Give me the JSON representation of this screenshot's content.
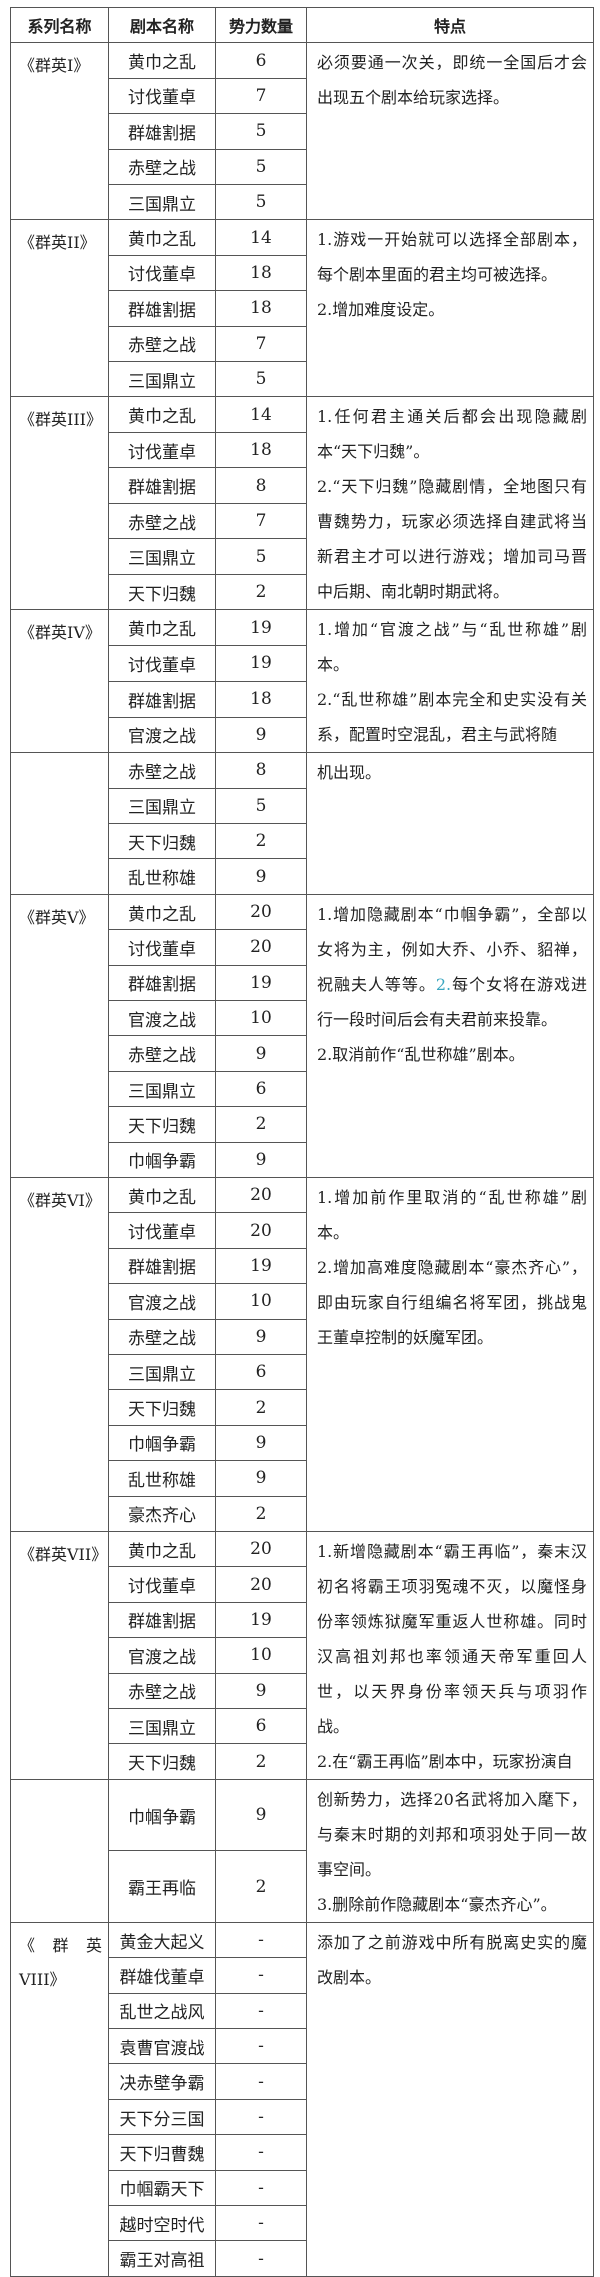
{
  "headers": [
    "系列名称",
    "剧本名称",
    "势力数量",
    "特点"
  ],
  "accent_color": "#3aa6c0",
  "groups": [
    {
      "series": "《群英I》",
      "rows": [
        [
          "黄巾之乱",
          "6"
        ],
        [
          "讨伐董卓",
          "7"
        ],
        [
          "群雄割据",
          "5"
        ],
        [
          "赤壁之战",
          "5"
        ],
        [
          "三国鼎立",
          "5"
        ]
      ],
      "features": [
        [
          {
            "text": "必须要通一次关，即统一全国后才会出现五个剧本给玩家选择。"
          }
        ]
      ]
    },
    {
      "series": "《群英II》",
      "rows": [
        [
          "黄巾之乱",
          "14"
        ],
        [
          "讨伐董卓",
          "18"
        ],
        [
          "群雄割据",
          "18"
        ],
        [
          "赤壁之战",
          "7"
        ],
        [
          "三国鼎立",
          "5"
        ]
      ],
      "features": [
        [
          {
            "text": "1.游戏一开始就可以选择全部剧本，每个剧本里面的君主均可被选择。"
          }
        ],
        [
          {
            "text": "2.增加难度设定。"
          }
        ]
      ]
    },
    {
      "series": "《群英III》",
      "rows": [
        [
          "黄巾之乱",
          "14"
        ],
        [
          "讨伐董卓",
          "18"
        ],
        [
          "群雄割据",
          "8"
        ],
        [
          "赤壁之战",
          "7"
        ],
        [
          "三国鼎立",
          "5"
        ],
        [
          "天下归魏",
          "2"
        ]
      ],
      "features": [
        [
          {
            "text": "1.任何君主通关后都会出现隐藏剧本“天下归魏”。"
          }
        ],
        [
          {
            "text": "2.“天下归魏”隐藏剧情，全地图只有曹魏势力，玩家必须选择自建武将当新君主才可以进行游戏；增加司马晋中后期、南北朝时期武将。"
          }
        ]
      ]
    },
    {
      "series": "《群英IV》",
      "rows": [
        [
          "黄巾之乱",
          "19"
        ],
        [
          "讨伐董卓",
          "19"
        ],
        [
          "群雄割据",
          "18"
        ],
        [
          "官渡之战",
          "9"
        ]
      ],
      "features": [
        [
          {
            "text": "1.增加“官渡之战”与“乱世称雄”剧本。"
          }
        ],
        [
          {
            "text": "2.“乱世称雄”剧本完全和史实没有关系，配置时空混乱，君主与武将随"
          }
        ]
      ]
    },
    {
      "series": "",
      "rows": [
        [
          "赤壁之战",
          "8"
        ],
        [
          "三国鼎立",
          "5"
        ],
        [
          "天下归魏",
          "2"
        ],
        [
          "乱世称雄",
          "9"
        ]
      ],
      "features": [
        [
          {
            "text": "机出现。"
          }
        ]
      ]
    },
    {
      "series": "《群英V》",
      "rows": [
        [
          "黄巾之乱",
          "20"
        ],
        [
          "讨伐董卓",
          "20"
        ],
        [
          "群雄割据",
          "19"
        ],
        [
          "官渡之战",
          "10"
        ],
        [
          "赤壁之战",
          "9"
        ],
        [
          "三国鼎立",
          "6"
        ],
        [
          "天下归魏",
          "2"
        ],
        [
          "巾帼争霸",
          "9"
        ]
      ],
      "features": [
        [
          {
            "text": "1.增加隐藏剧本“巾帼争霸”，全部以女将为主，例如大乔、小乔、貂禅，祝融夫人等等。"
          },
          {
            "text": "2.",
            "accent": true
          },
          {
            "text": "每个女将在游戏进行一段时间后会有夫君前来投靠。"
          }
        ],
        [
          {
            "text": "2.取消前作“乱世称雄”剧本。"
          }
        ]
      ]
    },
    {
      "series": "《群英VI》",
      "rows": [
        [
          "黄巾之乱",
          "20"
        ],
        [
          "讨伐董卓",
          "20"
        ],
        [
          "群雄割据",
          "19"
        ],
        [
          "官渡之战",
          "10"
        ],
        [
          "赤壁之战",
          "9"
        ],
        [
          "三国鼎立",
          "6"
        ],
        [
          "天下归魏",
          "2"
        ],
        [
          "巾帼争霸",
          "9"
        ],
        [
          "乱世称雄",
          "9"
        ],
        [
          "豪杰齐心",
          "2"
        ]
      ],
      "features": [
        [
          {
            "text": "1.增加前作里取消的“乱世称雄”剧本。"
          }
        ],
        [
          {
            "text": "2.增加高难度隐藏剧本“豪杰齐心”，即由玩家自行组编名将军团，挑战鬼王董卓控制的妖魔军团。"
          }
        ]
      ]
    },
    {
      "series": "《群英VII》",
      "rows": [
        [
          "黄巾之乱",
          "20"
        ],
        [
          "讨伐董卓",
          "20"
        ],
        [
          "群雄割据",
          "19"
        ],
        [
          "官渡之战",
          "10"
        ],
        [
          "赤壁之战",
          "9"
        ],
        [
          "三国鼎立",
          "6"
        ],
        [
          "天下归魏",
          "2"
        ]
      ],
      "features": [
        [
          {
            "text": "1.新增隐藏剧本“霸王再临”，秦末汉初名将霸王项羽冤魂不灭，以魔怪身份率领炼狱魔军重返人世称雄。同时汉高祖刘邦也率领通天帝军重回人世，以天界身份率领天兵与项羽作战。"
          }
        ],
        [
          {
            "text": "2.在“霸王再临”剧本中，玩家扮演自"
          }
        ]
      ]
    },
    {
      "series": "",
      "rows": [
        [
          "巾帼争霸",
          "9"
        ],
        [
          "霸王再临",
          "2"
        ]
      ],
      "features": [
        [
          {
            "text": "创新势力，选择20名武将加入麾下，与秦末时期的刘邦和项羽处于同一故事空间。"
          }
        ],
        [
          {
            "text": "3.删除前作隐藏剧本“豪杰齐心”。"
          }
        ]
      ]
    },
    {
      "series": "《群英VIII》",
      "rows": [
        [
          "黄金大起义",
          "-"
        ],
        [
          "群雄伐董卓",
          "-"
        ],
        [
          "乱世之战风",
          "-"
        ],
        [
          "袁曹官渡战",
          "-"
        ],
        [
          "决赤壁争霸",
          "-"
        ],
        [
          "天下分三国",
          "-"
        ],
        [
          "天下归曹魏",
          "-"
        ],
        [
          "巾帼霸天下",
          "-"
        ],
        [
          "越时空时代",
          "-"
        ],
        [
          "霸王对高祖",
          "-"
        ]
      ],
      "features": [
        [
          {
            "text": "添加了之前游戏中所有脱离史实的魔改剧本。"
          }
        ]
      ]
    }
  ]
}
